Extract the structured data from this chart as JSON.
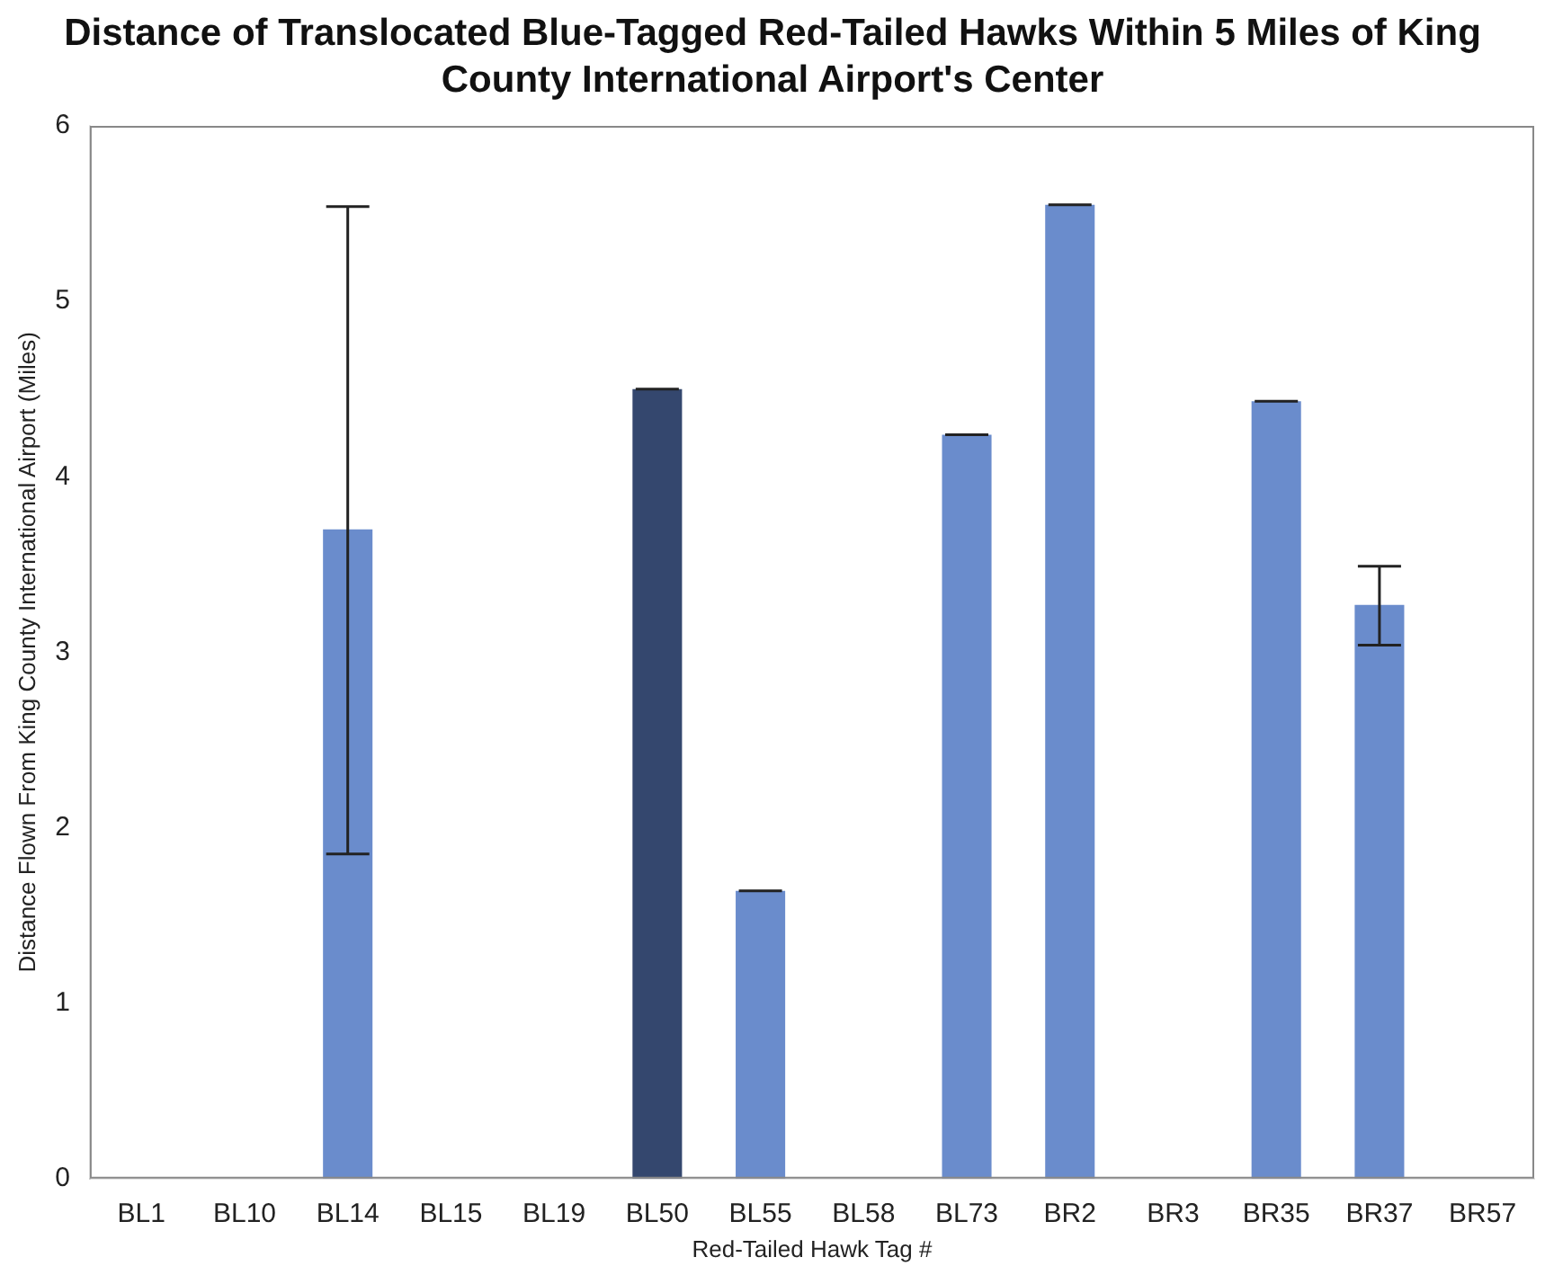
{
  "chart_data": {
    "type": "bar",
    "title": "Distance of Translocated Blue-Tagged Red-Tailed Hawks Within 5 Miles of King County International Airport's Center",
    "xlabel": "Red-Tailed Hawk Tag #",
    "ylabel": "Distance Flown From King County International Airport (Miles)",
    "categories": [
      "BL1",
      "BL10",
      "BL14",
      "BL15",
      "BL19",
      "BL50",
      "BL55",
      "BL58",
      "BL73",
      "BR2",
      "BR3",
      "BR35",
      "BR37",
      "BR57"
    ],
    "values": [
      null,
      null,
      3.7,
      null,
      null,
      4.5,
      1.64,
      null,
      4.24,
      5.55,
      null,
      4.43,
      3.27,
      null
    ],
    "colors": [
      "#6a8ccc",
      "#6a8ccc",
      "#6a8ccc",
      "#6a8ccc",
      "#6a8ccc",
      "#34476e",
      "#6a8ccc",
      "#6a8ccc",
      "#6a8ccc",
      "#6a8ccc",
      "#6a8ccc",
      "#6a8ccc",
      "#6a8ccc",
      "#6a8ccc"
    ],
    "errors": [
      null,
      null,
      [
        1.85,
        5.54
      ],
      null,
      null,
      0,
      0,
      null,
      0,
      0,
      null,
      0,
      [
        3.04,
        3.49
      ],
      null
    ],
    "ylim": [
      0,
      6
    ],
    "yticks": [
      0,
      1,
      2,
      3,
      4,
      5,
      6
    ],
    "grid": false,
    "legend": false
  }
}
